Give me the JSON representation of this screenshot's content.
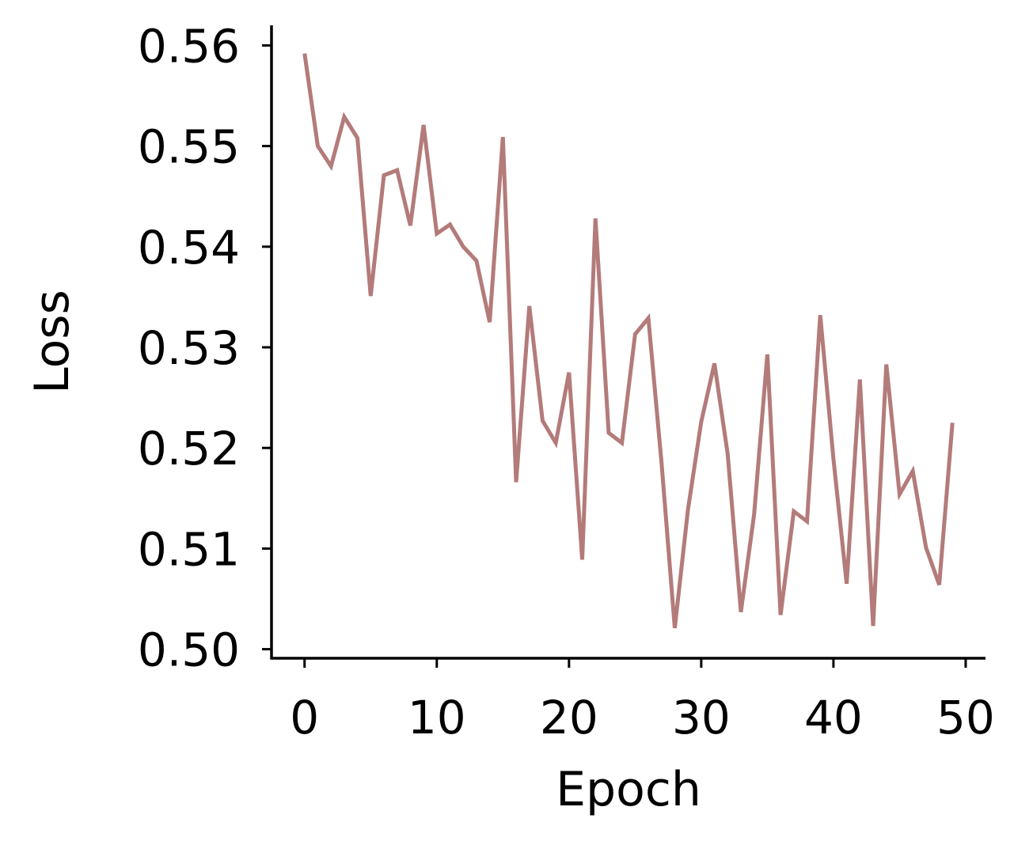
{
  "chart_data": {
    "type": "line",
    "title": "",
    "xlabel": "Epoch",
    "ylabel": "Loss",
    "xlim": [
      -2.5,
      51.5
    ],
    "ylim": [
      0.4991,
      0.562
    ],
    "xticks": [
      0,
      10,
      20,
      30,
      40,
      50
    ],
    "yticks": [
      0.5,
      0.51,
      0.52,
      0.53,
      0.54,
      0.55,
      0.56
    ],
    "xtick_labels": [
      "0",
      "10",
      "20",
      "30",
      "40",
      "50"
    ],
    "ytick_labels": [
      "0.50",
      "0.51",
      "0.52",
      "0.53",
      "0.54",
      "0.55",
      "0.56"
    ],
    "grid": false,
    "series": [
      {
        "color": "#b37b7a",
        "x": [
          0,
          1,
          2,
          3,
          4,
          5,
          6,
          7,
          8,
          9,
          10,
          11,
          12,
          13,
          14,
          15,
          16,
          17,
          18,
          19,
          20,
          21,
          22,
          23,
          24,
          25,
          26,
          27,
          28,
          29,
          30,
          31,
          32,
          33,
          34,
          35,
          36,
          37,
          38,
          39,
          40,
          41,
          42,
          43,
          44,
          45,
          46,
          47,
          48,
          49
        ],
        "y": [
          0.5592,
          0.55,
          0.548,
          0.5529,
          0.5508,
          0.5351,
          0.5471,
          0.5476,
          0.5421,
          0.5521,
          0.5413,
          0.5422,
          0.54,
          0.5386,
          0.5325,
          0.5509,
          0.5166,
          0.5341,
          0.5227,
          0.5205,
          0.5275,
          0.5089,
          0.5428,
          0.5215,
          0.5205,
          0.5313,
          0.5329,
          0.5185,
          0.5021,
          0.5139,
          0.5226,
          0.5284,
          0.5194,
          0.5037,
          0.5134,
          0.5293,
          0.5034,
          0.5137,
          0.5127,
          0.5332,
          0.5189,
          0.5065,
          0.5268,
          0.5023,
          0.5283,
          0.5154,
          0.5177,
          0.5101,
          0.5064,
          0.5225
        ]
      }
    ]
  }
}
